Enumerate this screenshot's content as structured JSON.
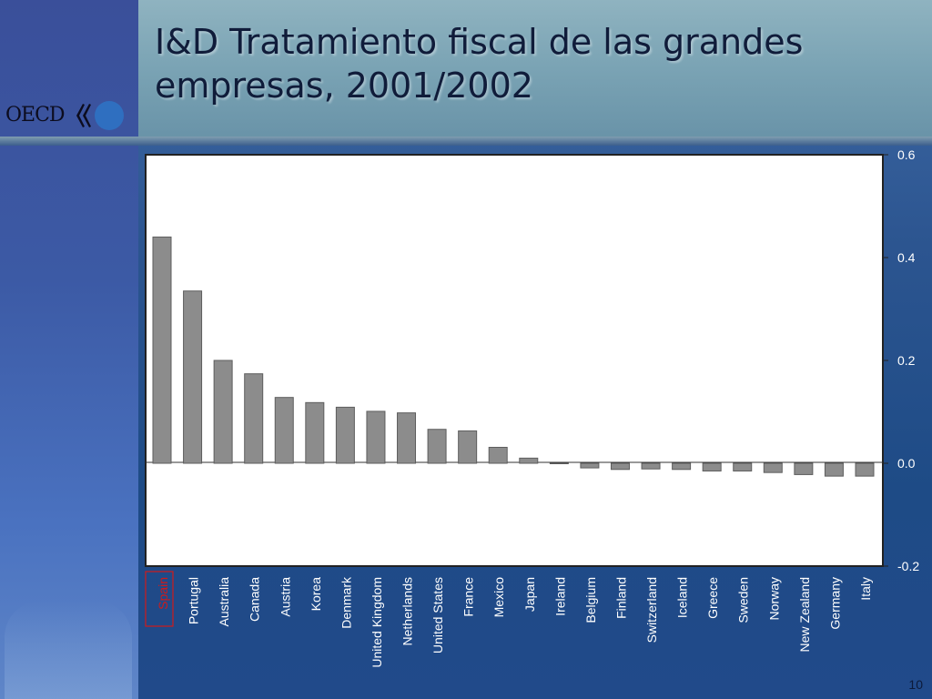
{
  "slide": {
    "title": "I&D Tratamiento fiscal de las grandes empresas, 2001/2002",
    "logo_text": "OECD",
    "page_number": "10"
  },
  "colors": {
    "bar_fill": "#8c8c8c",
    "bar_stroke": "#5e5e5e",
    "plot_background": "#ffffff",
    "highlight": "#d01a1a",
    "label_text": "#ffffff",
    "tick_text": "#ffffff"
  },
  "chart_data": {
    "type": "bar",
    "title": "",
    "xlabel": "",
    "ylabel": "",
    "ylim": [
      -0.2,
      0.6
    ],
    "yticks": [
      "0.6",
      "0.4",
      "0.2",
      "0.0",
      "-0.2"
    ],
    "ytick_values": [
      0.6,
      0.4,
      0.2,
      0.0,
      -0.2
    ],
    "y_axis_side": "right",
    "grid": false,
    "highlighted_category": "Spain",
    "categories": [
      "Spain",
      "Portugal",
      "Australia",
      "Canada",
      "Austria",
      "Korea",
      "Denmark",
      "United Kingdom",
      "Netherlands",
      "United States",
      "France",
      "Mexico",
      "Japan",
      "Ireland",
      "Belgium",
      "Finland",
      "Switzerland",
      "Iceland",
      "Greece",
      "Sweden",
      "Norway",
      "New Zealand",
      "Germany",
      "Italy"
    ],
    "values": [
      0.44,
      0.335,
      0.2,
      0.174,
      0.128,
      0.118,
      0.109,
      0.101,
      0.098,
      0.066,
      0.063,
      0.031,
      0.01,
      0.0,
      -0.009,
      -0.012,
      -0.011,
      -0.012,
      -0.015,
      -0.015,
      -0.018,
      -0.022,
      -0.025,
      -0.025
    ]
  }
}
